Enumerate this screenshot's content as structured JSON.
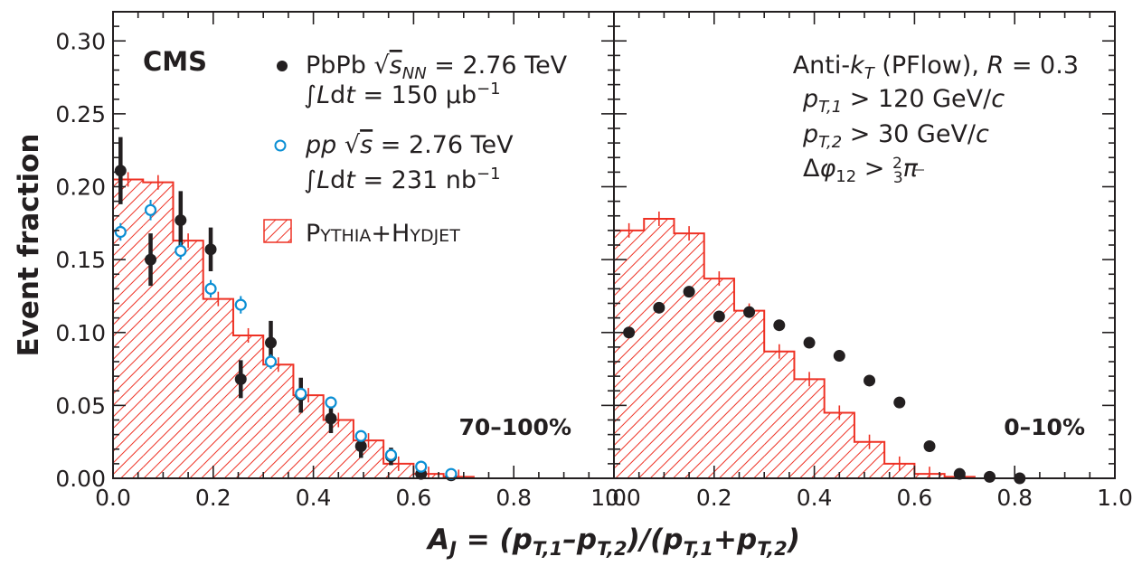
{
  "chart_data": [
    {
      "type": "bar",
      "panel": "left",
      "experiment": "CMS",
      "centrality_label": "70–100%",
      "xlim": [
        0.0,
        1.0
      ],
      "ylim": [
        0.0,
        0.32
      ],
      "x_ticks": [
        "0.0",
        "0.2",
        "0.4",
        "0.6",
        "0.8",
        "1.0"
      ],
      "y_ticks": [
        "0.00",
        "0.05",
        "0.10",
        "0.15",
        "0.20",
        "0.25",
        "0.30"
      ],
      "bin_edges": [
        0.0,
        0.06,
        0.12,
        0.18,
        0.24,
        0.3,
        0.36,
        0.42,
        0.48,
        0.54,
        0.6,
        0.66,
        0.72
      ],
      "legend": {
        "pbpb_line1": "PbPb √s_NN = 2.76 TeV",
        "pbpb_line2": "∫Ldt = 150 μb⁻¹",
        "pp_line1": "pp √s = 2.76 TeV",
        "pp_line2": "∫Ldt = 231 nb⁻¹",
        "mc": "PYTHIA+HYDJET"
      },
      "series": [
        {
          "name": "PYTHIA+HYDJET",
          "kind": "histogram",
          "color": "#ee3124",
          "values": [
            0.205,
            0.203,
            0.163,
            0.123,
            0.098,
            0.078,
            0.057,
            0.04,
            0.026,
            0.01,
            0.003,
            0.001
          ]
        },
        {
          "name": "PbPb",
          "kind": "points",
          "color": "#231f20",
          "x": [
            0.015,
            0.075,
            0.135,
            0.195,
            0.255,
            0.315,
            0.375,
            0.435,
            0.495,
            0.555,
            0.615,
            0.675
          ],
          "y": [
            0.211,
            0.15,
            0.177,
            0.157,
            0.068,
            0.093,
            0.057,
            0.041,
            0.022,
            0.015,
            0.003,
            0.002
          ],
          "err": [
            0.023,
            0.018,
            0.02,
            0.015,
            0.013,
            0.015,
            0.012,
            0.01,
            0.008,
            0.006,
            0.003,
            0.001
          ]
        },
        {
          "name": "pp",
          "kind": "points",
          "color": "#0b8fd4",
          "x": [
            0.015,
            0.075,
            0.135,
            0.195,
            0.255,
            0.315,
            0.375,
            0.435,
            0.495,
            0.555,
            0.615,
            0.675
          ],
          "y": [
            0.169,
            0.184,
            0.156,
            0.13,
            0.119,
            0.08,
            0.058,
            0.052,
            0.029,
            0.016,
            0.008,
            0.003
          ],
          "err": [
            0.006,
            0.007,
            0.006,
            0.006,
            0.006,
            0.005,
            0.004,
            0.004,
            0.003,
            0.003,
            0.002,
            0.001
          ]
        }
      ]
    },
    {
      "type": "bar",
      "panel": "right",
      "centrality_label": "0–10%",
      "xlim": [
        0.0,
        1.0
      ],
      "ylim": [
        0.0,
        0.32
      ],
      "x_ticks": [
        "0.0",
        "0.2",
        "0.4",
        "0.6",
        "0.8",
        "1.0"
      ],
      "bin_edges": [
        0.0,
        0.06,
        0.12,
        0.18,
        0.24,
        0.3,
        0.36,
        0.42,
        0.48,
        0.54,
        0.6,
        0.66,
        0.72
      ],
      "cuts": {
        "line1": "Anti-kT (PFlow), R = 0.3",
        "line2": "pT,1 > 120 GeV/c",
        "line3": "pT,2 > 30 GeV/c",
        "line4": "Δφ12 > 2/3 π"
      },
      "series": [
        {
          "name": "PYTHIA+HYDJET",
          "kind": "histogram",
          "color": "#ee3124",
          "values": [
            0.17,
            0.178,
            0.168,
            0.137,
            0.115,
            0.087,
            0.068,
            0.045,
            0.025,
            0.01,
            0.003,
            0.001
          ]
        },
        {
          "name": "PbPb",
          "kind": "points",
          "color": "#231f20",
          "x": [
            0.03,
            0.09,
            0.15,
            0.21,
            0.27,
            0.33,
            0.39,
            0.45,
            0.51,
            0.57,
            0.63,
            0.69,
            0.75,
            0.81
          ],
          "y": [
            0.1,
            0.117,
            0.128,
            0.111,
            0.114,
            0.105,
            0.093,
            0.084,
            0.067,
            0.052,
            0.022,
            0.003,
            0.001,
            0.0
          ]
        }
      ]
    }
  ],
  "axes": {
    "ylabel": "Event fraction",
    "xlabel": "A_J = (p_T,1 − p_T,2)/(p_T,1 + p_T,2)"
  }
}
